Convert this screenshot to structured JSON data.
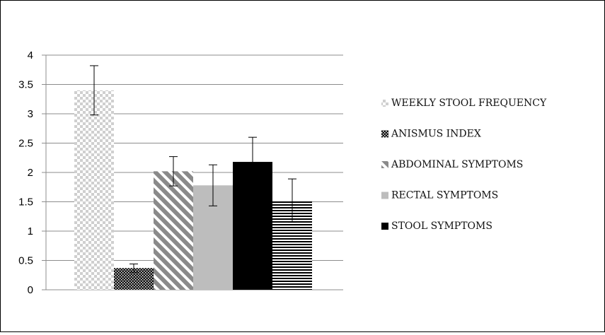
{
  "chart_data": {
    "type": "bar",
    "title": "",
    "xlabel": "",
    "ylabel": "",
    "ylim": [
      0,
      4
    ],
    "yticks": [
      "0",
      "0.5",
      "1",
      "1.5",
      "2",
      "2.5",
      "3",
      "3.5",
      "4"
    ],
    "grid": true,
    "legend_position": "right",
    "bars": [
      {
        "name": "WEEKLY STOOL FREQUENCY",
        "value": 3.4,
        "error": 0.42,
        "pattern": "checker",
        "in_legend": true
      },
      {
        "name": "ANISMUS INDEX",
        "value": 0.37,
        "error": 0.07,
        "pattern": "dense-dots",
        "in_legend": true
      },
      {
        "name": "ABDOMINAL SYMPTOMS",
        "value": 2.02,
        "error": 0.25,
        "pattern": "diagonal-stripes",
        "in_legend": true
      },
      {
        "name": "RECTAL SYMPTOMS",
        "value": 1.78,
        "error": 0.35,
        "pattern": "solid-gray",
        "in_legend": true
      },
      {
        "name": "STOOL SYMPTOMS",
        "value": 2.18,
        "error": 0.42,
        "pattern": "solid-black",
        "in_legend": true
      },
      {
        "name": "",
        "value": 1.52,
        "error": 0.37,
        "pattern": "horizontal-stripes",
        "in_legend": false
      }
    ],
    "colors": {
      "grid": "#8c8c8c",
      "axis": "#8c8c8c",
      "gray": "#bdbdbd",
      "black": "#000000"
    }
  }
}
